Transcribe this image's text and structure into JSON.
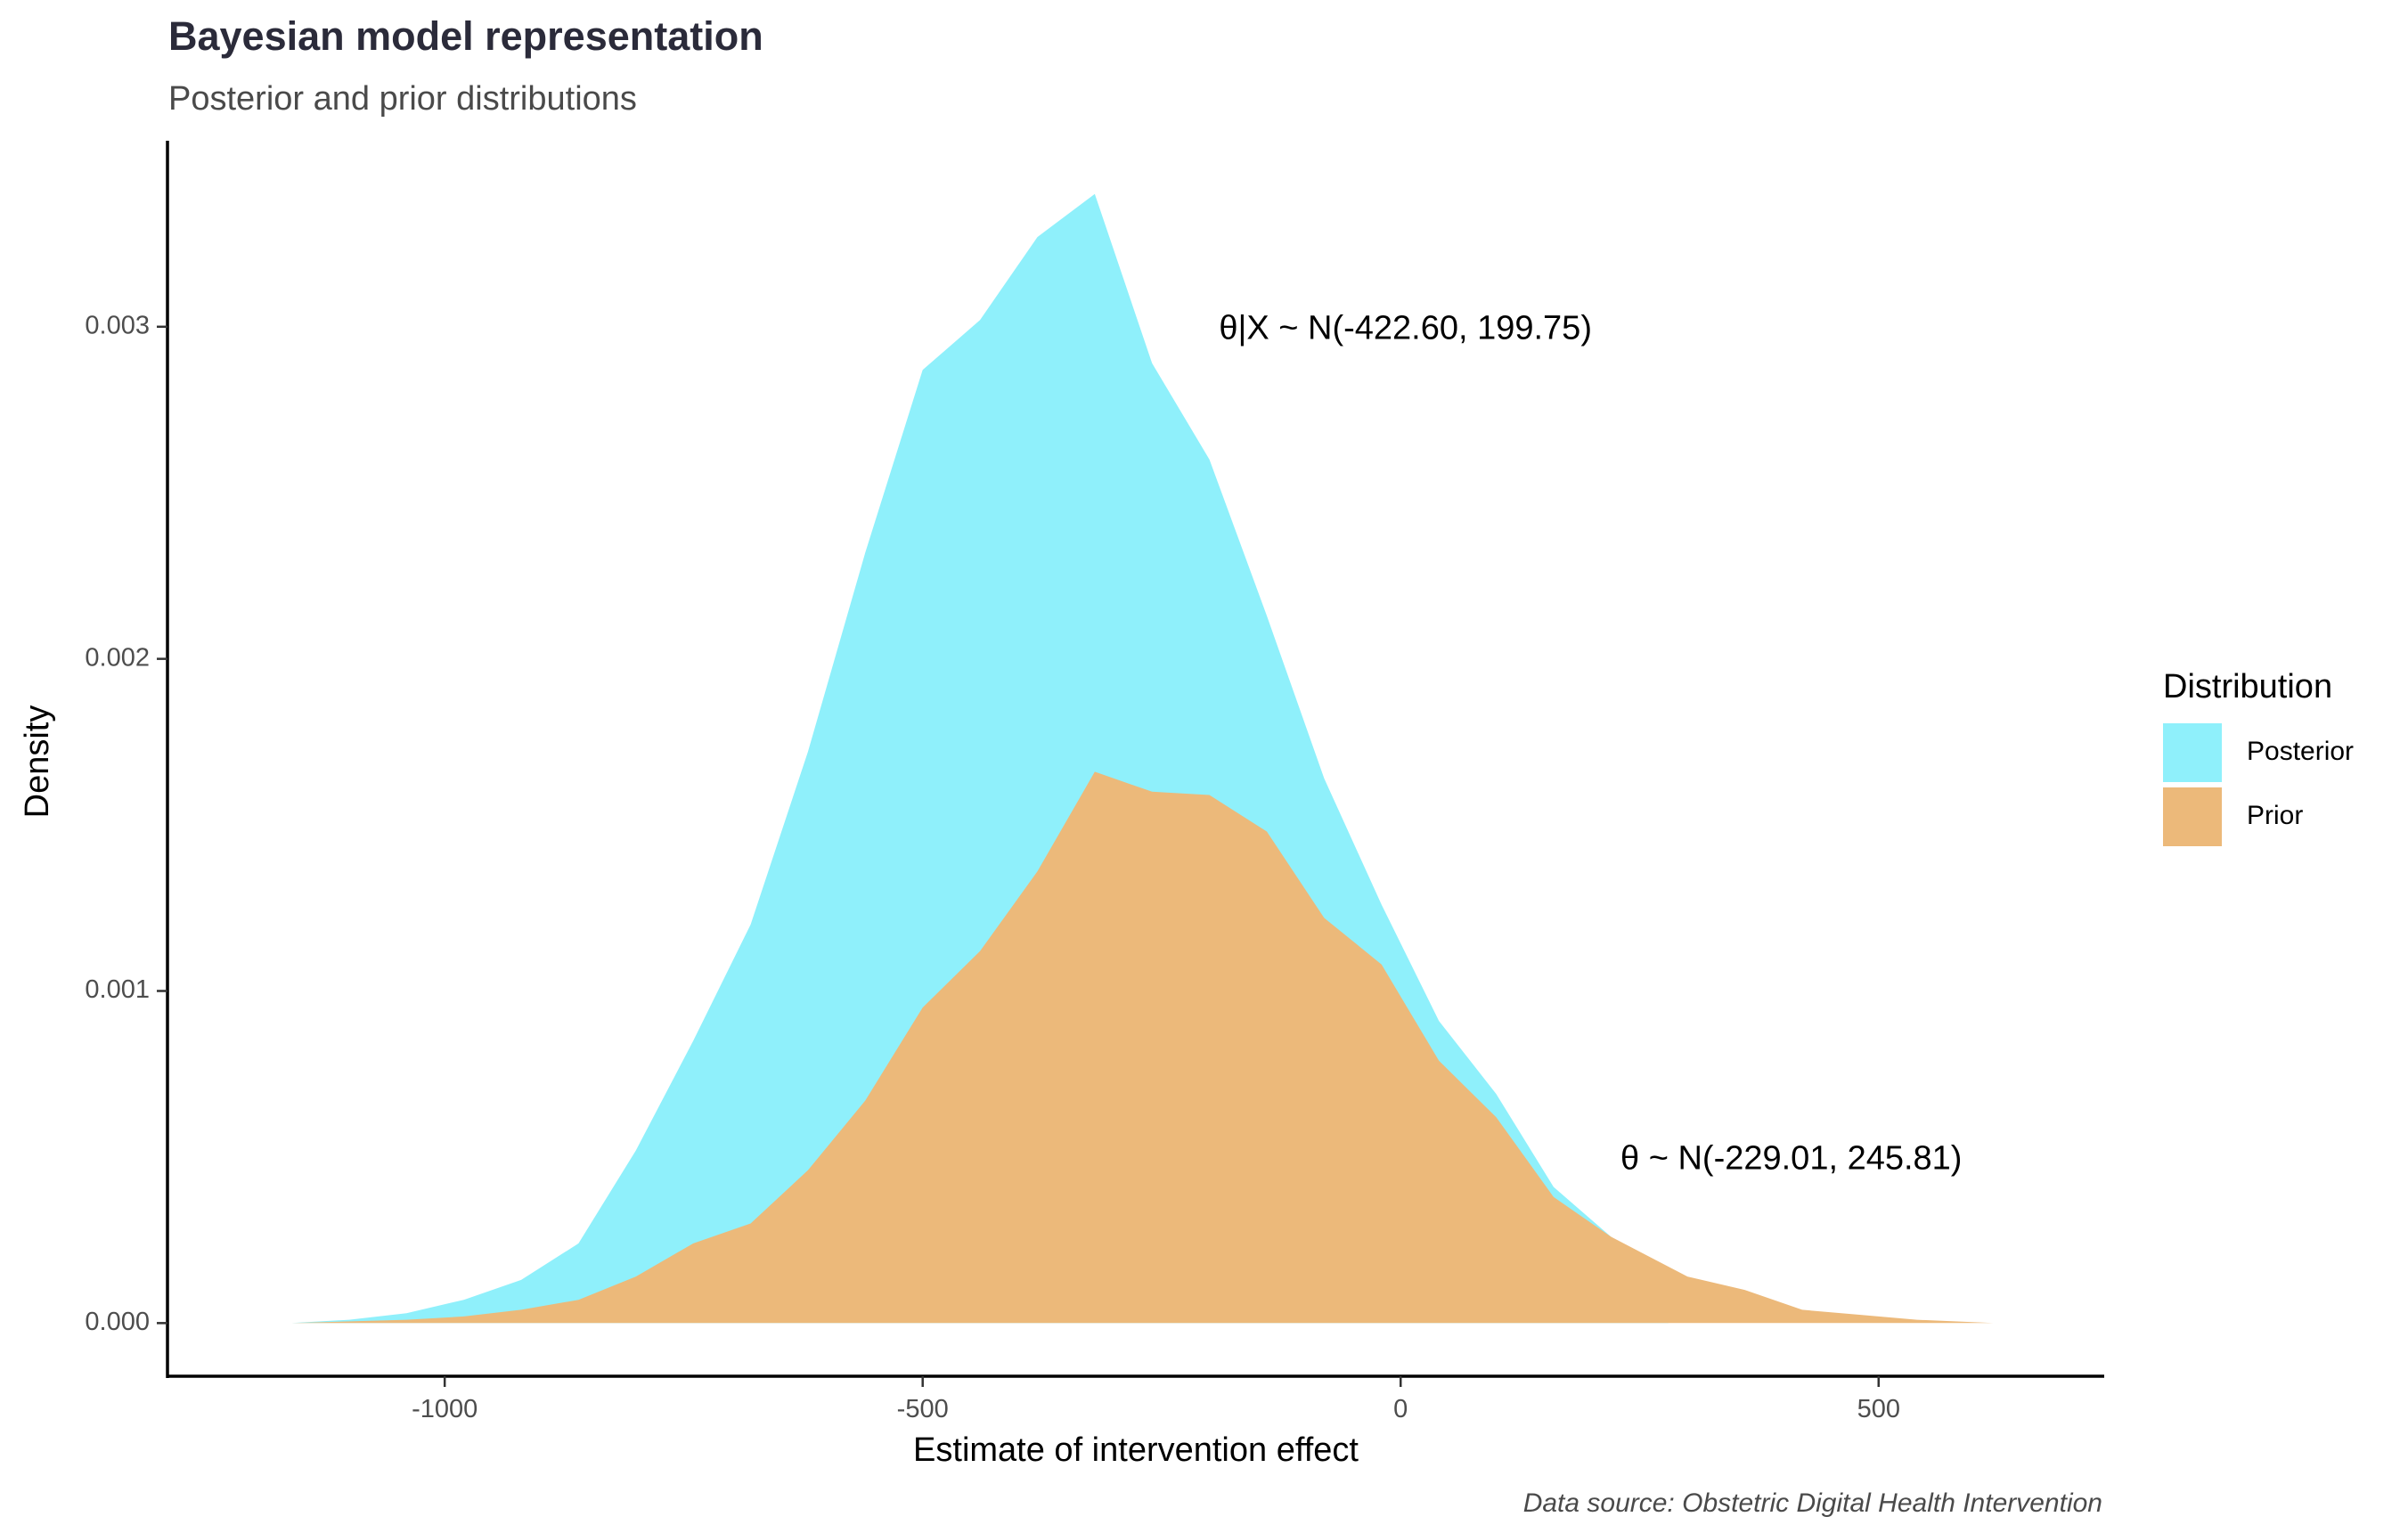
{
  "chart_data": {
    "type": "area",
    "title": "Bayesian model representation",
    "subtitle": "Posterior and prior distributions",
    "xlabel": "Estimate of intervention effect",
    "ylabel": "Density",
    "caption": "Data source: Obstetric Digital Health Intervention",
    "xlim": [
      -1290,
      736
    ],
    "ylim": [
      -0.00016,
      0.00356
    ],
    "x_ticks": [
      -1000,
      -500,
      0,
      500
    ],
    "x_tick_labels": [
      "-1000",
      "-500",
      "0",
      "500"
    ],
    "y_ticks": [
      0.0,
      0.001,
      0.002,
      0.003
    ],
    "y_tick_labels": [
      "0.000",
      "0.001",
      "0.002",
      "0.003"
    ],
    "grid": false,
    "legend": {
      "title": "Distribution",
      "position": "right"
    },
    "series": [
      {
        "name": "Posterior",
        "color": "#8ff0fb",
        "x": [
          -1160,
          -1100,
          -1040,
          -980,
          -920,
          -860,
          -800,
          -740,
          -680,
          -620,
          -560,
          -500,
          -440,
          -380,
          -320,
          -260,
          -200,
          -140,
          -80,
          -20,
          40,
          100,
          160,
          220,
          280
        ],
        "values": [
          0.0,
          1e-05,
          3e-05,
          7e-05,
          0.00013,
          0.00024,
          0.00052,
          0.00085,
          0.0012,
          0.00172,
          0.00232,
          0.00287,
          0.00302,
          0.00327,
          0.0034,
          0.00289,
          0.0026,
          0.00213,
          0.00164,
          0.00126,
          0.00091,
          0.00069,
          0.00041,
          0.00026,
          0.00014
        ]
      },
      {
        "name": "Prior",
        "color": "#ecb97a",
        "x": [
          -1160,
          -1040,
          -980,
          -920,
          -860,
          -800,
          -740,
          -680,
          -620,
          -560,
          -500,
          -440,
          -380,
          -320,
          -260,
          -200,
          -140,
          -80,
          -20,
          40,
          100,
          160,
          220,
          300,
          360,
          420,
          480,
          540,
          620
        ],
        "values": [
          0.0,
          1e-05,
          2e-05,
          4e-05,
          7e-05,
          0.00014,
          0.00024,
          0.0003,
          0.00046,
          0.00067,
          0.00095,
          0.00112,
          0.00136,
          0.00166,
          0.0016,
          0.00159,
          0.00148,
          0.00122,
          0.00108,
          0.00079,
          0.00062,
          0.00038,
          0.00026,
          0.00014,
          0.0001,
          4e-05,
          2.5e-05,
          1e-05,
          0.0
        ]
      }
    ],
    "annotations": [
      {
        "text": "θ|X ~ N(-422.60, 199.75)",
        "x": -190,
        "y": 0.00299
      },
      {
        "text": "θ ~ N(-229.01, 245.81)",
        "x": 230,
        "y": 0.00049
      }
    ]
  }
}
